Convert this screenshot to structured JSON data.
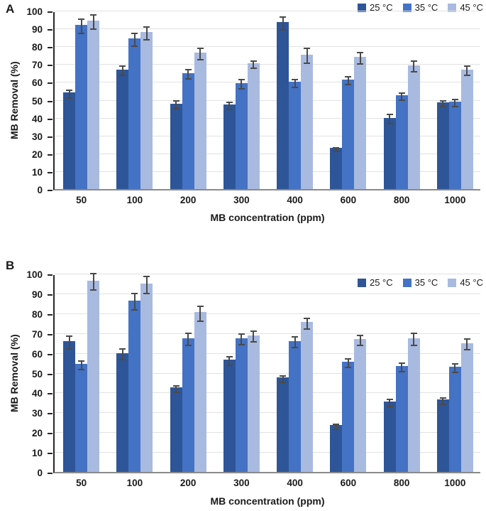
{
  "page": {
    "background": "#ffffff"
  },
  "colors": {
    "t25": "#2E5597",
    "t35": "#4472C4",
    "t45": "#A9BAE0",
    "grid": "#E2E2E2",
    "y_axis": "#262626",
    "x_axis": "#8A8A8A",
    "error_bar": "#4A4A4A"
  },
  "chart_data": [
    {
      "type": "bar",
      "panel_label": "A",
      "xlabel": "MB concentration (ppm)",
      "ylabel": "MB Removal (%)",
      "ylim": [
        0,
        100
      ],
      "yticks": [
        0,
        10,
        20,
        30,
        40,
        50,
        60,
        70,
        80,
        90,
        100
      ],
      "grid": true,
      "legend_position": "top-right",
      "categories": [
        "50",
        "100",
        "200",
        "300",
        "400",
        "600",
        "800",
        "1000"
      ],
      "series": [
        {
          "name": "25 °C",
          "color": "#2E5597",
          "values": [
            54,
            67,
            48,
            47.5,
            93.5,
            23,
            40,
            48.5
          ],
          "errors": [
            2.5,
            3,
            2.5,
            2.5,
            4,
            1.5,
            3,
            2
          ]
        },
        {
          "name": "35 °C",
          "color": "#4472C4",
          "values": [
            92,
            84.5,
            65,
            59.5,
            60,
            61.5,
            52.5,
            49
          ],
          "errors": [
            4.5,
            4,
            3,
            3,
            2.5,
            2.5,
            2.5,
            2.5
          ]
        },
        {
          "name": "45 °C",
          "color": "#A9BAE0",
          "values": [
            94.5,
            88,
            76.5,
            70.5,
            75.5,
            74,
            69.5,
            67
          ],
          "errors": [
            4.5,
            4,
            3.5,
            2.5,
            4.5,
            3.5,
            3.5,
            3
          ]
        }
      ]
    },
    {
      "type": "bar",
      "panel_label": "B",
      "xlabel": "MB concentration (ppm)",
      "ylabel": "MB Removal (%)",
      "ylim": [
        0,
        100
      ],
      "yticks": [
        0,
        10,
        20,
        30,
        40,
        50,
        60,
        70,
        80,
        90,
        100
      ],
      "grid": true,
      "legend_position": "top-right",
      "categories": [
        "50",
        "100",
        "200",
        "300",
        "400",
        "600",
        "800",
        "1000"
      ],
      "series": [
        {
          "name": "25 °C",
          "color": "#2E5597",
          "values": [
            66,
            60,
            42.5,
            56.5,
            47.5,
            23.5,
            35.5,
            36.5
          ],
          "errors": [
            3.5,
            3,
            2,
            2.5,
            2,
            1.5,
            2,
            2
          ]
        },
        {
          "name": "35 °C",
          "color": "#4472C4",
          "values": [
            54.5,
            86.5,
            67.5,
            67.5,
            66,
            55.5,
            53.5,
            53
          ],
          "errors": [
            2.5,
            4.5,
            3.5,
            3,
            3,
            2.5,
            2.5,
            2.5
          ]
        },
        {
          "name": "45 °C",
          "color": "#A9BAE0",
          "values": [
            96.5,
            95,
            80.5,
            69,
            75.5,
            67,
            67.5,
            65
          ],
          "errors": [
            4.5,
            4.5,
            4,
            3,
            3,
            3,
            3.5,
            3
          ]
        }
      ]
    }
  ]
}
